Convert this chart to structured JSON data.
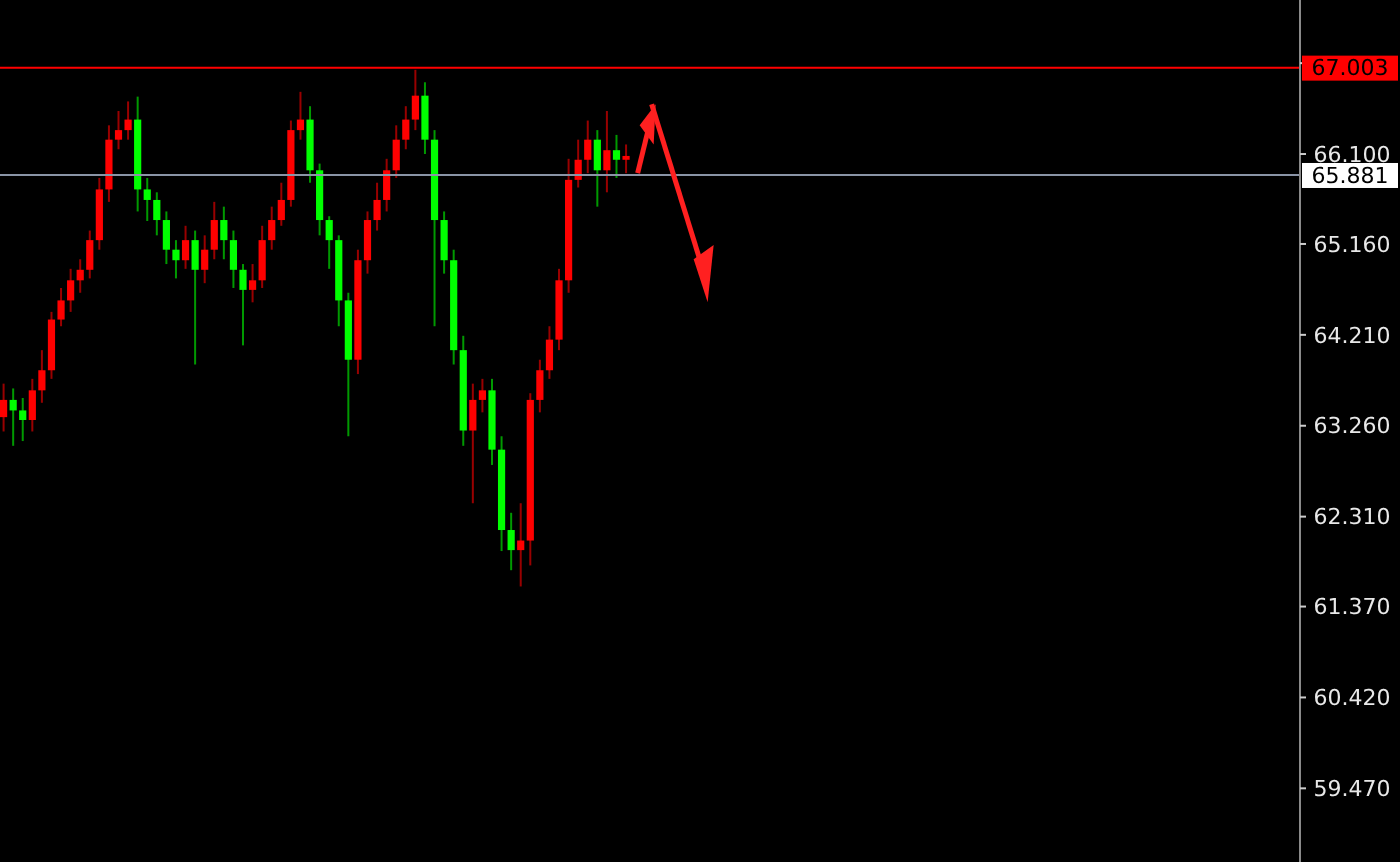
{
  "chart_data": {
    "type": "candlestick",
    "categories": [
      null,
      null,
      null,
      null,
      null,
      null,
      null,
      null,
      null,
      null,
      null,
      null,
      null,
      null,
      null,
      null,
      null,
      null,
      null,
      null,
      null,
      null,
      null,
      null,
      null,
      null,
      null,
      null,
      null,
      null,
      null,
      null,
      null,
      null,
      null,
      null,
      null,
      null,
      null,
      null,
      null,
      null,
      null,
      null,
      null,
      null,
      null,
      null,
      null,
      null,
      null,
      null,
      null,
      null,
      null,
      null,
      null,
      null,
      null,
      null,
      null,
      null,
      null,
      null,
      null,
      null,
      null,
      null,
      null,
      null,
      null,
      null,
      null,
      null,
      null,
      null,
      null,
      null,
      null,
      null,
      null,
      null,
      null,
      null,
      null,
      null,
      null,
      null,
      null,
      null,
      null,
      null,
      null,
      null,
      null,
      null,
      null,
      null,
      null,
      null,
      null,
      null,
      null,
      null,
      null,
      null,
      null,
      null,
      null,
      null,
      null,
      null,
      null,
      null,
      null,
      null,
      null,
      null,
      null,
      null,
      null,
      null,
      null,
      null,
      null,
      null,
      null,
      null,
      null,
      null,
      null,
      null,
      null,
      null,
      null,
      null
    ],
    "ohlc": [
      [
        63.35,
        63.7,
        63.2,
        63.53
      ],
      [
        63.53,
        63.65,
        63.05,
        63.42
      ],
      [
        63.42,
        63.55,
        63.1,
        63.32
      ],
      [
        63.32,
        63.75,
        63.2,
        63.63
      ],
      [
        63.63,
        64.05,
        63.5,
        63.84
      ],
      [
        63.84,
        64.45,
        63.75,
        64.37
      ],
      [
        64.37,
        64.7,
        64.3,
        64.57
      ],
      [
        64.57,
        64.9,
        64.45,
        64.78
      ],
      [
        64.78,
        65.0,
        64.65,
        64.89
      ],
      [
        64.89,
        65.3,
        64.8,
        65.2
      ],
      [
        65.2,
        65.85,
        65.1,
        65.73
      ],
      [
        65.73,
        66.4,
        65.6,
        66.25
      ],
      [
        66.25,
        66.55,
        66.15,
        66.35
      ],
      [
        66.35,
        66.65,
        66.25,
        66.46
      ],
      [
        66.46,
        66.7,
        65.5,
        65.73
      ],
      [
        65.73,
        65.85,
        65.4,
        65.62
      ],
      [
        65.62,
        65.7,
        65.25,
        65.41
      ],
      [
        65.41,
        65.5,
        64.95,
        65.1
      ],
      [
        65.1,
        65.2,
        64.8,
        64.99
      ],
      [
        64.99,
        65.35,
        64.9,
        65.2
      ],
      [
        65.2,
        65.3,
        63.9,
        64.89
      ],
      [
        64.89,
        65.25,
        64.75,
        65.1
      ],
      [
        65.1,
        65.6,
        65.0,
        65.41
      ],
      [
        65.41,
        65.55,
        65.0,
        65.2
      ],
      [
        65.2,
        65.3,
        64.7,
        64.89
      ],
      [
        64.89,
        64.95,
        64.1,
        64.68
      ],
      [
        64.68,
        64.95,
        64.55,
        64.78
      ],
      [
        64.78,
        65.35,
        64.7,
        65.2
      ],
      [
        65.2,
        65.55,
        65.1,
        65.41
      ],
      [
        65.41,
        65.8,
        65.35,
        65.62
      ],
      [
        65.62,
        66.45,
        65.55,
        66.35
      ],
      [
        66.35,
        66.75,
        66.25,
        66.46
      ],
      [
        66.46,
        66.6,
        65.8,
        65.93
      ],
      [
        65.93,
        66.0,
        65.25,
        65.41
      ],
      [
        65.41,
        65.45,
        64.9,
        65.2
      ],
      [
        65.2,
        65.25,
        64.3,
        64.57
      ],
      [
        64.57,
        64.65,
        63.15,
        63.95
      ],
      [
        63.95,
        65.1,
        63.8,
        64.99
      ],
      [
        64.99,
        65.5,
        64.85,
        65.41
      ],
      [
        65.41,
        65.8,
        65.3,
        65.62
      ],
      [
        65.62,
        66.05,
        65.5,
        65.93
      ],
      [
        65.93,
        66.4,
        65.85,
        66.25
      ],
      [
        66.25,
        66.6,
        66.15,
        66.46
      ],
      [
        66.46,
        66.98,
        66.35,
        66.71
      ],
      [
        66.71,
        66.85,
        66.1,
        66.25
      ],
      [
        66.25,
        66.35,
        64.3,
        65.41
      ],
      [
        65.41,
        65.5,
        64.85,
        64.99
      ],
      [
        64.99,
        65.1,
        63.9,
        64.05
      ],
      [
        64.05,
        64.2,
        63.05,
        63.21
      ],
      [
        63.21,
        63.7,
        62.45,
        63.53
      ],
      [
        63.53,
        63.75,
        63.4,
        63.63
      ],
      [
        63.63,
        63.75,
        62.85,
        63.01
      ],
      [
        63.01,
        63.15,
        61.95,
        62.17
      ],
      [
        62.17,
        62.35,
        61.75,
        61.96
      ],
      [
        61.96,
        62.45,
        61.58,
        62.06
      ],
      [
        62.06,
        63.6,
        61.8,
        63.53
      ],
      [
        63.53,
        63.95,
        63.4,
        63.84
      ],
      [
        63.84,
        64.3,
        63.75,
        64.16
      ],
      [
        64.16,
        64.9,
        64.05,
        64.78
      ],
      [
        64.78,
        66.05,
        64.65,
        65.83
      ],
      [
        65.83,
        66.25,
        65.75,
        66.04
      ],
      [
        66.04,
        66.45,
        65.9,
        66.25
      ],
      [
        66.25,
        66.35,
        65.55,
        65.93
      ],
      [
        65.93,
        66.55,
        65.7,
        66.14
      ],
      [
        66.14,
        66.3,
        65.85,
        66.04
      ],
      [
        66.04,
        66.2,
        65.9,
        66.08
      ],
      null,
      null,
      null,
      null,
      null,
      null,
      null,
      null,
      null,
      null,
      null,
      null,
      null,
      null,
      null,
      null,
      null,
      null,
      null,
      null,
      null,
      null,
      null,
      null,
      null,
      null,
      null,
      null,
      null,
      null,
      null,
      null,
      null,
      null,
      null,
      null,
      null,
      null,
      null,
      null,
      null,
      null,
      null,
      null,
      null,
      null,
      null,
      null,
      null,
      null,
      null,
      null,
      null,
      null,
      null,
      null,
      null,
      null,
      null,
      null,
      null,
      null,
      null,
      null,
      null,
      null,
      null,
      null,
      null,
      null
    ],
    "colors": [
      "#ff0000",
      "#00ff00",
      "#00ff00",
      "#ff0000",
      "#ff0000",
      "#ff0000",
      "#ff0000",
      "#ff0000",
      "#ff0000",
      "#ff0000",
      "#ff0000",
      "#ff0000",
      "#ff0000",
      "#ff0000",
      "#00ff00",
      "#00ff00",
      "#00ff00",
      "#00ff00",
      "#00ff00",
      "#ff0000",
      "#00ff00",
      "#ff0000",
      "#ff0000",
      "#00ff00",
      "#00ff00",
      "#00ff00",
      "#ff0000",
      "#ff0000",
      "#ff0000",
      "#ff0000",
      "#ff0000",
      "#ff0000",
      "#00ff00",
      "#00ff00",
      "#00ff00",
      "#00ff00",
      "#00ff00",
      "#ff0000",
      "#ff0000",
      "#ff0000",
      "#ff0000",
      "#ff0000",
      "#ff0000",
      "#ff0000",
      "#00ff00",
      "#00ff00",
      "#00ff00",
      "#00ff00",
      "#00ff00",
      "#ff0000",
      "#ff0000",
      "#00ff00",
      "#00ff00",
      "#00ff00",
      "#ff0000",
      "#ff0000",
      "#ff0000",
      "#ff0000",
      "#ff0000",
      "#ff0000",
      "#ff0000",
      "#ff0000",
      "#00ff00",
      "#ff0000",
      "#00ff00",
      "#ff0000",
      null,
      null,
      null,
      null,
      null,
      null,
      null,
      null,
      null,
      null,
      null,
      null,
      null,
      null,
      null,
      null,
      null,
      null,
      null,
      null,
      null,
      null,
      null,
      null,
      null,
      null,
      null,
      null,
      null,
      null,
      null,
      null,
      null,
      null,
      null,
      null,
      null,
      null,
      null,
      null,
      null,
      null,
      null,
      null,
      null,
      null,
      null,
      null,
      null,
      null,
      null,
      null,
      null,
      null,
      null,
      null,
      null,
      null,
      null,
      null,
      null,
      null,
      null,
      null,
      null,
      null,
      null,
      null,
      null,
      null
    ],
    "ylim": [
      58.7,
      67.71
    ],
    "yticks": [
      {
        "value": 67.05,
        "label": null
      },
      {
        "value": 66.1,
        "label": "66.100"
      },
      {
        "value": 65.16,
        "label": "65.160"
      },
      {
        "value": 64.21,
        "label": "64.210"
      },
      {
        "value": 63.26,
        "label": "63.260"
      },
      {
        "value": 62.31,
        "label": "62.310"
      },
      {
        "value": 61.37,
        "label": "61.370"
      },
      {
        "value": 60.42,
        "label": "60.420"
      },
      {
        "value": 59.47,
        "label": "59.470"
      }
    ],
    "ref_lines": [
      {
        "axis": "y",
        "value": 67.003,
        "label": "67.003",
        "color": "#ff0000"
      },
      {
        "axis": "y",
        "value": 65.881,
        "label": "65.881",
        "color": "#8a94a6"
      }
    ],
    "grid": false
  }
}
